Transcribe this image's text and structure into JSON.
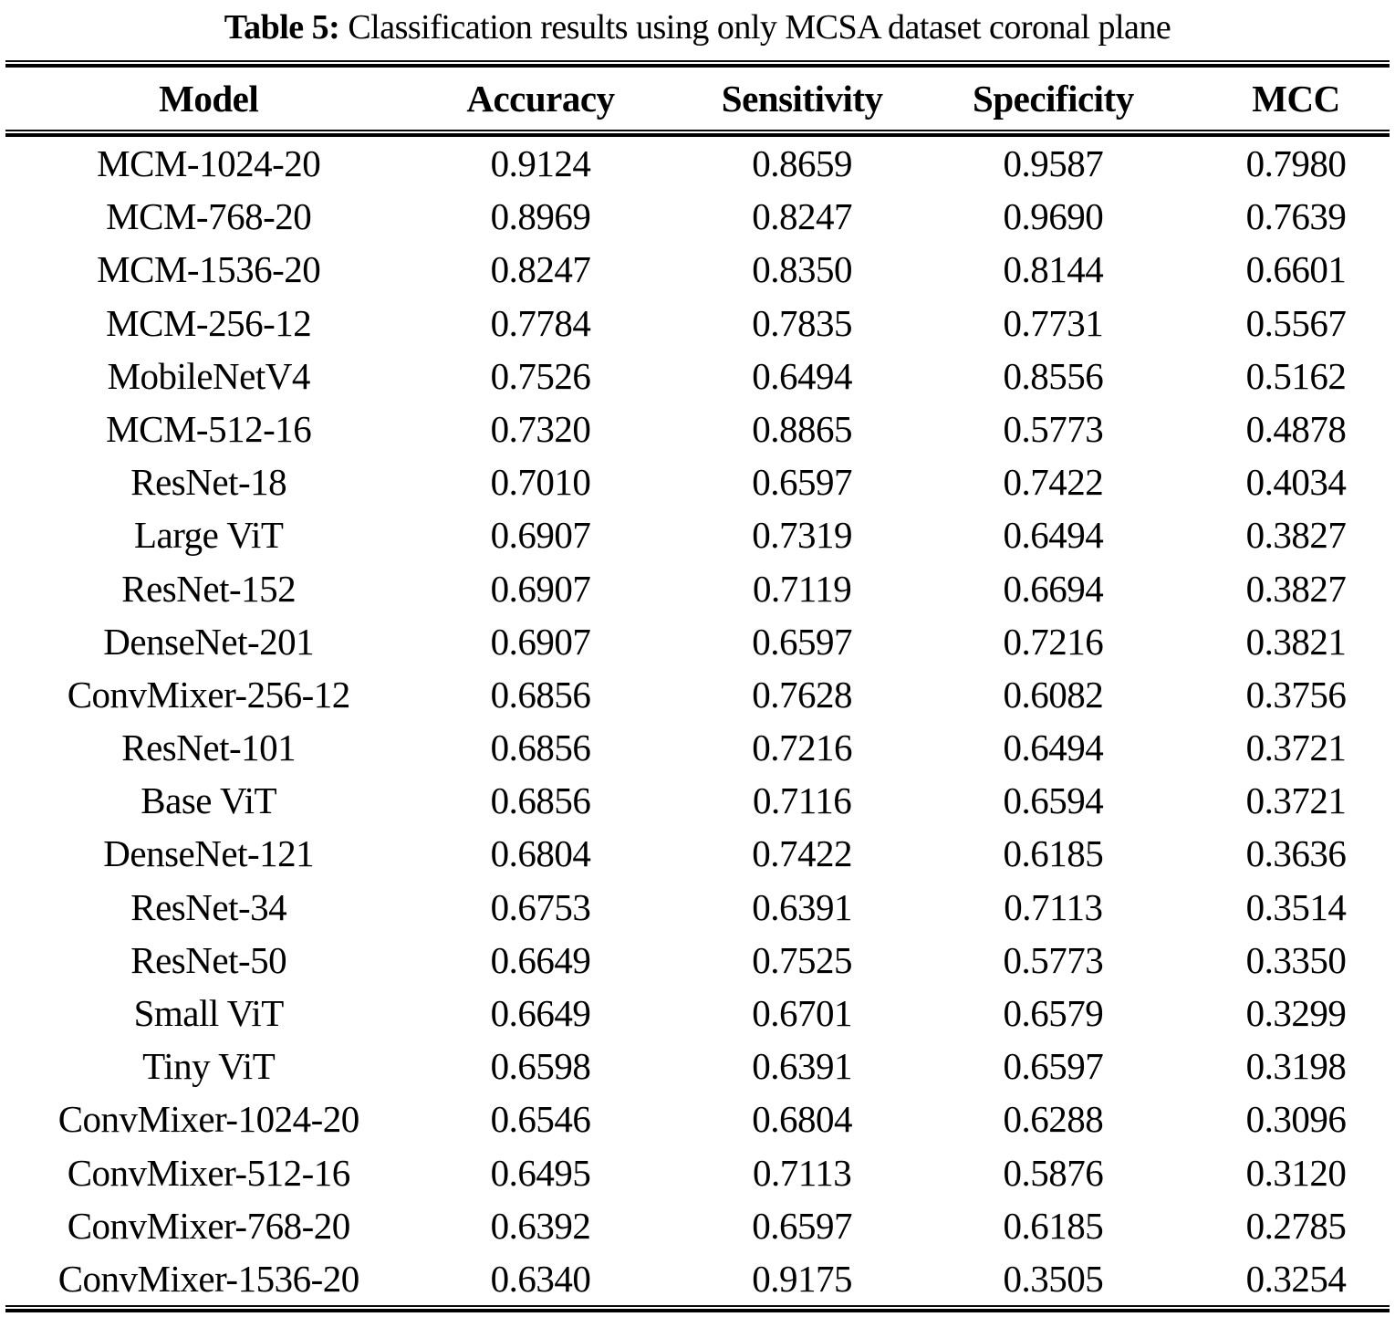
{
  "caption": {
    "label": "Table 5:",
    "text": " Classification results using only MCSA dataset coronal plane"
  },
  "table": {
    "columns": [
      {
        "key": "model",
        "label": "Model"
      },
      {
        "key": "accuracy",
        "label": "Accuracy"
      },
      {
        "key": "sensitivity",
        "label": "Sensitivity"
      },
      {
        "key": "specificity",
        "label": "Specificity"
      },
      {
        "key": "mcc",
        "label": "MCC"
      }
    ],
    "rows": [
      {
        "model": "MCM-1024-20",
        "accuracy": "0.9124",
        "sensitivity": "0.8659",
        "specificity": "0.9587",
        "mcc": "0.7980"
      },
      {
        "model": "MCM-768-20",
        "accuracy": "0.8969",
        "sensitivity": "0.8247",
        "specificity": "0.9690",
        "mcc": "0.7639"
      },
      {
        "model": "MCM-1536-20",
        "accuracy": "0.8247",
        "sensitivity": "0.8350",
        "specificity": "0.8144",
        "mcc": "0.6601"
      },
      {
        "model": "MCM-256-12",
        "accuracy": "0.7784",
        "sensitivity": "0.7835",
        "specificity": "0.7731",
        "mcc": "0.5567"
      },
      {
        "model": "MobileNetV4",
        "accuracy": "0.7526",
        "sensitivity": "0.6494",
        "specificity": "0.8556",
        "mcc": "0.5162"
      },
      {
        "model": "MCM-512-16",
        "accuracy": "0.7320",
        "sensitivity": "0.8865",
        "specificity": "0.5773",
        "mcc": "0.4878"
      },
      {
        "model": "ResNet-18",
        "accuracy": "0.7010",
        "sensitivity": "0.6597",
        "specificity": "0.7422",
        "mcc": "0.4034"
      },
      {
        "model": "Large ViT",
        "accuracy": "0.6907",
        "sensitivity": "0.7319",
        "specificity": "0.6494",
        "mcc": "0.3827"
      },
      {
        "model": "ResNet-152",
        "accuracy": "0.6907",
        "sensitivity": "0.7119",
        "specificity": "0.6694",
        "mcc": "0.3827"
      },
      {
        "model": "DenseNet-201",
        "accuracy": "0.6907",
        "sensitivity": "0.6597",
        "specificity": "0.7216",
        "mcc": "0.3821"
      },
      {
        "model": "ConvMixer-256-12",
        "accuracy": "0.6856",
        "sensitivity": "0.7628",
        "specificity": "0.6082",
        "mcc": "0.3756"
      },
      {
        "model": "ResNet-101",
        "accuracy": "0.6856",
        "sensitivity": "0.7216",
        "specificity": "0.6494",
        "mcc": "0.3721"
      },
      {
        "model": "Base ViT",
        "accuracy": "0.6856",
        "sensitivity": "0.7116",
        "specificity": "0.6594",
        "mcc": "0.3721"
      },
      {
        "model": "DenseNet-121",
        "accuracy": "0.6804",
        "sensitivity": "0.7422",
        "specificity": "0.6185",
        "mcc": "0.3636"
      },
      {
        "model": "ResNet-34",
        "accuracy": "0.6753",
        "sensitivity": "0.6391",
        "specificity": "0.7113",
        "mcc": "0.3514"
      },
      {
        "model": "ResNet-50",
        "accuracy": "0.6649",
        "sensitivity": "0.7525",
        "specificity": "0.5773",
        "mcc": "0.3350"
      },
      {
        "model": "Small ViT",
        "accuracy": "0.6649",
        "sensitivity": "0.6701",
        "specificity": "0.6579",
        "mcc": "0.3299"
      },
      {
        "model": "Tiny ViT",
        "accuracy": "0.6598",
        "sensitivity": "0.6391",
        "specificity": "0.6597",
        "mcc": "0.3198"
      },
      {
        "model": "ConvMixer-1024-20",
        "accuracy": "0.6546",
        "sensitivity": "0.6804",
        "specificity": "0.6288",
        "mcc": "0.3096"
      },
      {
        "model": "ConvMixer-512-16",
        "accuracy": "0.6495",
        "sensitivity": "0.7113",
        "specificity": "0.5876",
        "mcc": "0.3120"
      },
      {
        "model": "ConvMixer-768-20",
        "accuracy": "0.6392",
        "sensitivity": "0.6597",
        "specificity": "0.6185",
        "mcc": "0.2785"
      },
      {
        "model": "ConvMixer-1536-20",
        "accuracy": "0.6340",
        "sensitivity": "0.9175",
        "specificity": "0.3505",
        "mcc": "0.3254"
      }
    ]
  }
}
